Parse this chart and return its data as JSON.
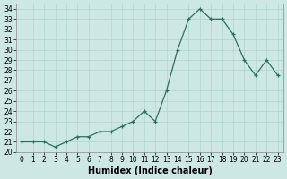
{
  "x": [
    0,
    1,
    2,
    3,
    4,
    5,
    6,
    7,
    8,
    9,
    10,
    11,
    12,
    13,
    14,
    15,
    16,
    17,
    18,
    19,
    20,
    21,
    22,
    23
  ],
  "y": [
    21.0,
    21.0,
    21.0,
    20.5,
    21.0,
    21.5,
    21.5,
    22.0,
    22.0,
    22.5,
    23.0,
    24.0,
    23.0,
    26.0,
    30.0,
    33.0,
    34.0,
    33.0,
    33.0,
    31.5,
    29.0,
    27.5,
    29.0,
    27.5
  ],
  "xlabel": "Humidex (Indice chaleur)",
  "xlim": [
    -0.5,
    23.5
  ],
  "ylim": [
    20,
    34.5
  ],
  "yticks": [
    20,
    21,
    22,
    23,
    24,
    25,
    26,
    27,
    28,
    29,
    30,
    31,
    32,
    33,
    34
  ],
  "xticks": [
    0,
    1,
    2,
    3,
    4,
    5,
    6,
    7,
    8,
    9,
    10,
    11,
    12,
    13,
    14,
    15,
    16,
    17,
    18,
    19,
    20,
    21,
    22,
    23
  ],
  "line_color": "#2d6e5e",
  "marker": "+",
  "bg_color": "#cde8e4",
  "grid_color": "#b0d4cf",
  "tick_fontsize": 5.5,
  "xlabel_fontsize": 7.0,
  "linewidth": 0.9,
  "markersize": 3.5,
  "markeredgewidth": 0.9
}
